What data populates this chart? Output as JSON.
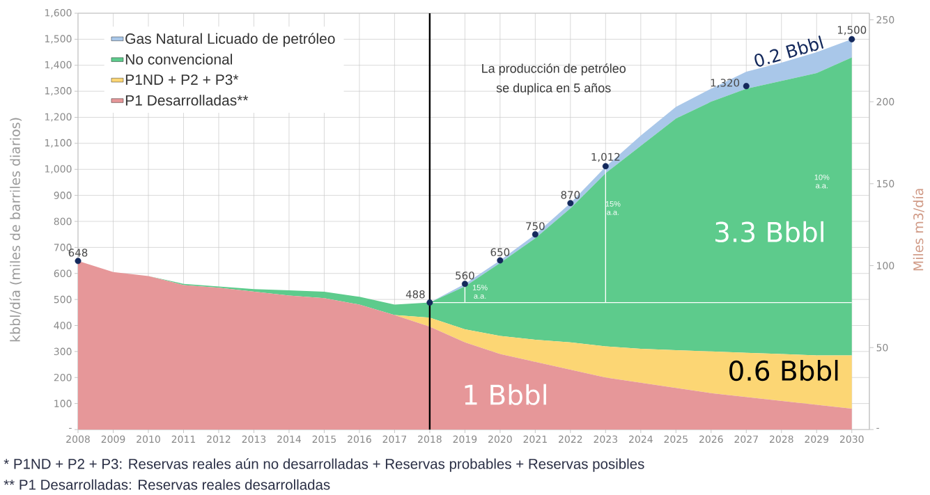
{
  "chart_data": {
    "type": "area",
    "stacked": true,
    "x": [
      2008,
      2009,
      2010,
      2011,
      2012,
      2013,
      2014,
      2015,
      2016,
      2017,
      2018,
      2019,
      2020,
      2021,
      2022,
      2023,
      2024,
      2025,
      2026,
      2027,
      2028,
      2029,
      2030
    ],
    "xlim": [
      2008,
      2030.5
    ],
    "xticks": [
      2008,
      2009,
      2010,
      2011,
      2012,
      2013,
      2014,
      2015,
      2016,
      2017,
      2018,
      2019,
      2020,
      2021,
      2022,
      2023,
      2024,
      2025,
      2026,
      2027,
      2028,
      2029,
      2030
    ],
    "ylim": [
      0,
      1600
    ],
    "yticks": [
      {
        "value": 0,
        "label": "-"
      },
      100,
      200,
      300,
      400,
      500,
      600,
      700,
      800,
      900,
      {
        "value": 1000,
        "label": "1,000"
      },
      {
        "value": 1100,
        "label": "1,100"
      },
      {
        "value": 1200,
        "label": "1,200"
      },
      {
        "value": 1300,
        "label": "1,300"
      },
      {
        "value": 1400,
        "label": "1,400"
      },
      {
        "value": 1500,
        "label": "1,500"
      },
      {
        "value": 1600,
        "label": "1,600"
      }
    ],
    "y2lim": [
      0,
      254
    ],
    "y2ticks": [
      {
        "value": 0,
        "label": "-"
      },
      50,
      100,
      150,
      200,
      250
    ],
    "ylabel": "kbbl/día (miles de barriles diarios)",
    "y2label": "Miles m3/día",
    "grid": true,
    "legend": "top left",
    "series": [
      {
        "name": "P1 Desarrolladas**",
        "color": "#e69799",
        "values": [
          648,
          605,
          590,
          555,
          545,
          530,
          515,
          505,
          480,
          440,
          395,
          335,
          290,
          260,
          230,
          200,
          180,
          160,
          140,
          125,
          110,
          95,
          80
        ]
      },
      {
        "name": "P1ND + P2 + P3*",
        "color": "#fcd674",
        "values": [
          0,
          0,
          0,
          0,
          0,
          0,
          0,
          0,
          0,
          0,
          35,
          50,
          70,
          85,
          105,
          120,
          130,
          145,
          160,
          170,
          180,
          190,
          205
        ]
      },
      {
        "name": "No convencional",
        "color": "#5dcb8c",
        "values": [
          0,
          0,
          0,
          5,
          5,
          10,
          20,
          25,
          30,
          40,
          58,
          165,
          280,
          390,
          515,
          665,
          780,
          890,
          960,
          1015,
          1050,
          1085,
          1145
        ]
      },
      {
        "name": "Gas Natural Licuado de petróleo",
        "color": "#a9c7e9",
        "values": [
          0,
          0,
          0,
          0,
          0,
          0,
          0,
          0,
          0,
          0,
          0,
          10,
          10,
          15,
          20,
          25,
          40,
          45,
          50,
          65,
          70,
          80,
          70
        ]
      },
      {
        "type": "line",
        "color": "#ffffff",
        "x": [
          2018,
          2030
        ],
        "values": [
          488,
          488
        ]
      },
      {
        "type": "line",
        "color": "#ffffff",
        "x": [
          2019,
          2019
        ],
        "values": [
          488,
          560
        ]
      },
      {
        "type": "line",
        "color": "#ffffff",
        "x": [
          2023,
          2023
        ],
        "values": [
          488,
          1012
        ]
      },
      {
        "type": "scatter",
        "color": "#14295c",
        "marker": "circle",
        "x": [
          2008,
          2018,
          2019,
          2020,
          2021,
          2022,
          2023,
          2027,
          2030
        ],
        "values": [
          648,
          488,
          560,
          650,
          750,
          870,
          1012,
          1320,
          1500
        ],
        "value_labels": [
          "648",
          "488",
          "560",
          "650",
          "750",
          "870",
          "1,012",
          "1,320",
          "1,500"
        ]
      }
    ],
    "ref_lines": [
      {
        "axis": "x",
        "value": 2018,
        "color": "#000000"
      }
    ],
    "annotations": [
      "La producción de petróleo",
      "se duplica en 5 años",
      "0.2 Bbbl",
      "3.3 Bbbl",
      "0.6 Bbbl",
      "1 Bbbl",
      "15% a.a.",
      "15% a.a.",
      "10% a.a.",
      "* P1ND + P2 + P3: Reservas reales aún no desarrolladas + Reservas probables + Reservas posibles",
      "** P1 Desarrolladas: Reservas reales desarrolladas"
    ]
  }
}
